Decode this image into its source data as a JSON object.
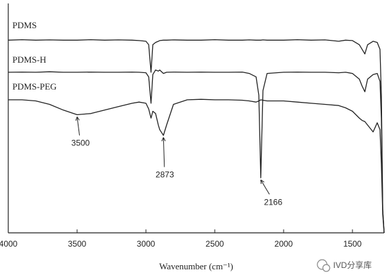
{
  "chart_data": {
    "type": "line",
    "x_label": "Wavenumber (cm⁻¹)",
    "x": [
      4000,
      3900,
      3800,
      3700,
      3600,
      3500,
      3400,
      3300,
      3200,
      3100,
      3050,
      3000,
      2980,
      2963,
      2950,
      2930,
      2910,
      2900,
      2873,
      2850,
      2800,
      2700,
      2600,
      2500,
      2400,
      2300,
      2250,
      2200,
      2180,
      2166,
      2150,
      2120,
      2000,
      1900,
      1800,
      1700,
      1600,
      1550,
      1500,
      1450,
      1430,
      1410,
      1390,
      1350,
      1320,
      1300,
      1290,
      1280,
      1270
    ],
    "series": [
      {
        "name": "PDMS",
        "color": "#222222",
        "values": [
          84,
          84.2,
          84,
          84.1,
          84,
          84,
          84.2,
          84,
          84.1,
          84,
          83.8,
          83.5,
          82,
          70,
          82,
          83,
          83.5,
          83.8,
          84,
          84,
          84.1,
          84,
          84,
          84.2,
          84,
          84,
          84.1,
          84,
          84,
          84,
          84.1,
          84,
          84,
          84.2,
          84,
          84.1,
          83.5,
          84,
          83.8,
          82,
          80,
          78,
          82,
          83.5,
          83,
          80,
          60,
          10,
          0
        ]
      },
      {
        "name": "PDMS-H",
        "color": "#222222",
        "values": [
          70,
          70.1,
          70,
          70.2,
          70,
          70,
          70.1,
          70,
          70,
          70.1,
          70,
          69.8,
          68,
          56.5,
          69,
          71,
          70.5,
          71,
          69.5,
          70,
          70.1,
          70,
          70.1,
          70,
          70,
          70.1,
          69.5,
          68,
          60,
          24,
          62,
          69.5,
          70,
          70.1,
          70,
          70,
          69.8,
          70,
          69.5,
          67,
          64,
          61.5,
          67,
          69,
          69.5,
          66,
          50,
          10,
          0
        ]
      },
      {
        "name": "PDMS-PEG",
        "color": "#222222",
        "values": [
          58,
          58,
          57.5,
          56,
          53.5,
          51.5,
          52,
          53.5,
          55,
          56.5,
          57,
          56.5,
          54,
          50,
          53,
          52,
          47,
          45,
          42.5,
          47,
          56,
          58,
          58.2,
          58,
          58,
          57.8,
          57.5,
          57,
          57.5,
          58,
          57.8,
          57.5,
          57.5,
          57,
          56.5,
          56,
          55.5,
          54.5,
          53,
          50,
          49,
          48.5,
          47,
          44,
          48,
          45,
          30,
          8,
          0
        ]
      }
    ],
    "annotations": [
      {
        "text": "3500",
        "x": 3500,
        "y": 51.5
      },
      {
        "text": "2873",
        "x": 2873,
        "y": 42.5
      },
      {
        "text": "2166",
        "x": 2166,
        "y": 24
      }
    ],
    "xlim": [
      4000,
      1270
    ],
    "xticks": [
      4000,
      3500,
      3000,
      2500,
      2000,
      1500
    ],
    "ylim": [
      0,
      100
    ],
    "watermark": "IVD分享库"
  }
}
